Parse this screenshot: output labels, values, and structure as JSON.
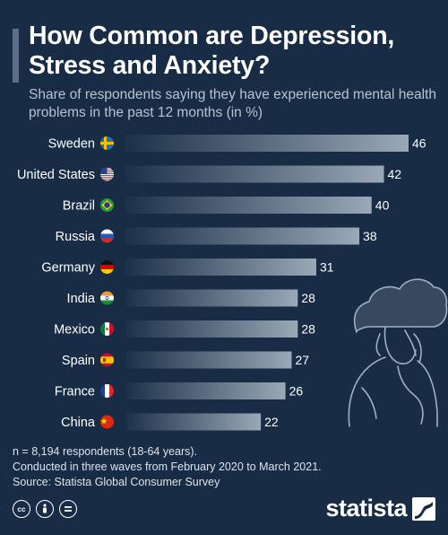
{
  "header": {
    "title": "How Common are Depression, Stress and Anxiety?",
    "subtitle": "Share of respondents saying they have experienced mental health problems in the past 12 months (in %)"
  },
  "notes": {
    "sample": "n = 8,194 respondents (18-64 years).",
    "waves": "Conducted in three waves from February 2020 to March 2021.",
    "source": "Source: Statista Global Consumer Survey"
  },
  "footer": {
    "logo_text": "statista",
    "license_icons": [
      "cc-icon",
      "by-icon",
      "nd-icon"
    ]
  },
  "colors": {
    "background": "#182c45",
    "bar_start": "#1c3149",
    "bar_end": "#9aa8b7",
    "text": "#ffffff"
  },
  "chart_data": {
    "type": "bar",
    "orientation": "horizontal",
    "categories": [
      "Sweden",
      "United States",
      "Brazil",
      "Russia",
      "Germany",
      "India",
      "Mexico",
      "Spain",
      "France",
      "China"
    ],
    "flags": [
      "sweden-flag-icon",
      "usa-flag-icon",
      "brazil-flag-icon",
      "russia-flag-icon",
      "germany-flag-icon",
      "india-flag-icon",
      "mexico-flag-icon",
      "spain-flag-icon",
      "france-flag-icon",
      "china-flag-icon"
    ],
    "values": [
      46,
      42,
      40,
      38,
      31,
      28,
      28,
      27,
      26,
      22
    ],
    "xlim": [
      0,
      46
    ],
    "data_labels": true,
    "grid": false
  }
}
